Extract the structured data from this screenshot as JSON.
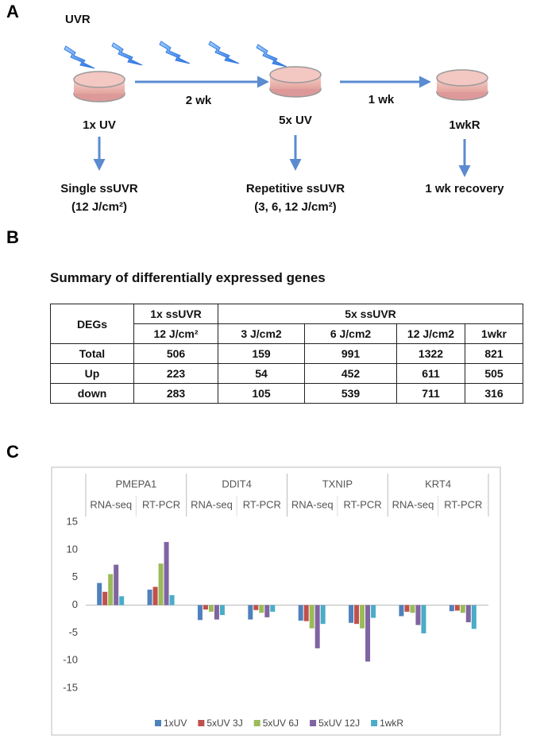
{
  "panel_a": {
    "label": "A",
    "source": "UVR",
    "intervals": [
      "2 wk",
      "1 wk"
    ],
    "stages": [
      {
        "name": "1x UV",
        "description": "Single ssUVR",
        "dose": "(12 J/cm²)"
      },
      {
        "name": "5x UV",
        "description": "Repetitive ssUVR",
        "dose": "(3, 6, 12 J/cm²)"
      },
      {
        "name": "1wkR",
        "description": "1 wk recovery"
      }
    ]
  },
  "panel_b": {
    "label": "B",
    "title": "Summary of differentially expressed genes",
    "table": {
      "header": [
        "DEGs",
        "1x ssUVR",
        "5x ssUVR"
      ],
      "subheader": [
        "12 J/cm²",
        "3 J/cm2",
        "6 J/cm2",
        "12 J/cm2",
        "1wkr"
      ],
      "rows": [
        [
          "Total",
          506,
          159,
          991,
          1322,
          821
        ],
        [
          "Up",
          223,
          54,
          452,
          611,
          505
        ],
        [
          "down",
          283,
          105,
          539,
          711,
          316
        ]
      ]
    }
  },
  "panel_c": {
    "label": "C"
  },
  "chart_data": {
    "type": "bar",
    "groups": [
      "PMEPA1",
      "DDIT4",
      "TXNIP",
      "KRT4"
    ],
    "categories": [
      "RNA-seq",
      "RT-PCR",
      "RNA-seq",
      "RT-PCR",
      "RNA-seq",
      "RT-PCR",
      "RNA-seq",
      "RT-PCR"
    ],
    "ylim": [
      -15,
      15
    ],
    "yticks": [
      15,
      10,
      5,
      0,
      -5,
      -10,
      -15
    ],
    "series": [
      {
        "name": "1xUV",
        "color": "#4f81bd",
        "values": [
          4,
          2.8,
          -2.7,
          -2.6,
          -2.8,
          -3.2,
          -2,
          -1.1
        ]
      },
      {
        "name": "5xUV 3J",
        "color": "#c0504d",
        "values": [
          2.4,
          3.3,
          -0.8,
          -0.9,
          -2.9,
          -3.4,
          -1.2,
          -1
        ]
      },
      {
        "name": "5xUV 6J",
        "color": "#9bbb59",
        "values": [
          5.6,
          7.5,
          -1.2,
          -1.4,
          -4.2,
          -4.2,
          -1.4,
          -1.4
        ]
      },
      {
        "name": "5xUV 12J",
        "color": "#8064a2",
        "values": [
          7.3,
          11.4,
          -2.6,
          -2.2,
          -7.8,
          -10.2,
          -3.6,
          -3.1
        ]
      },
      {
        "name": "1wkR",
        "color": "#4bacc6",
        "values": [
          1.6,
          1.8,
          -1.8,
          -1.2,
          -3.4,
          -2.3,
          -5.1,
          -4.3
        ]
      }
    ],
    "legend": "bottom"
  }
}
